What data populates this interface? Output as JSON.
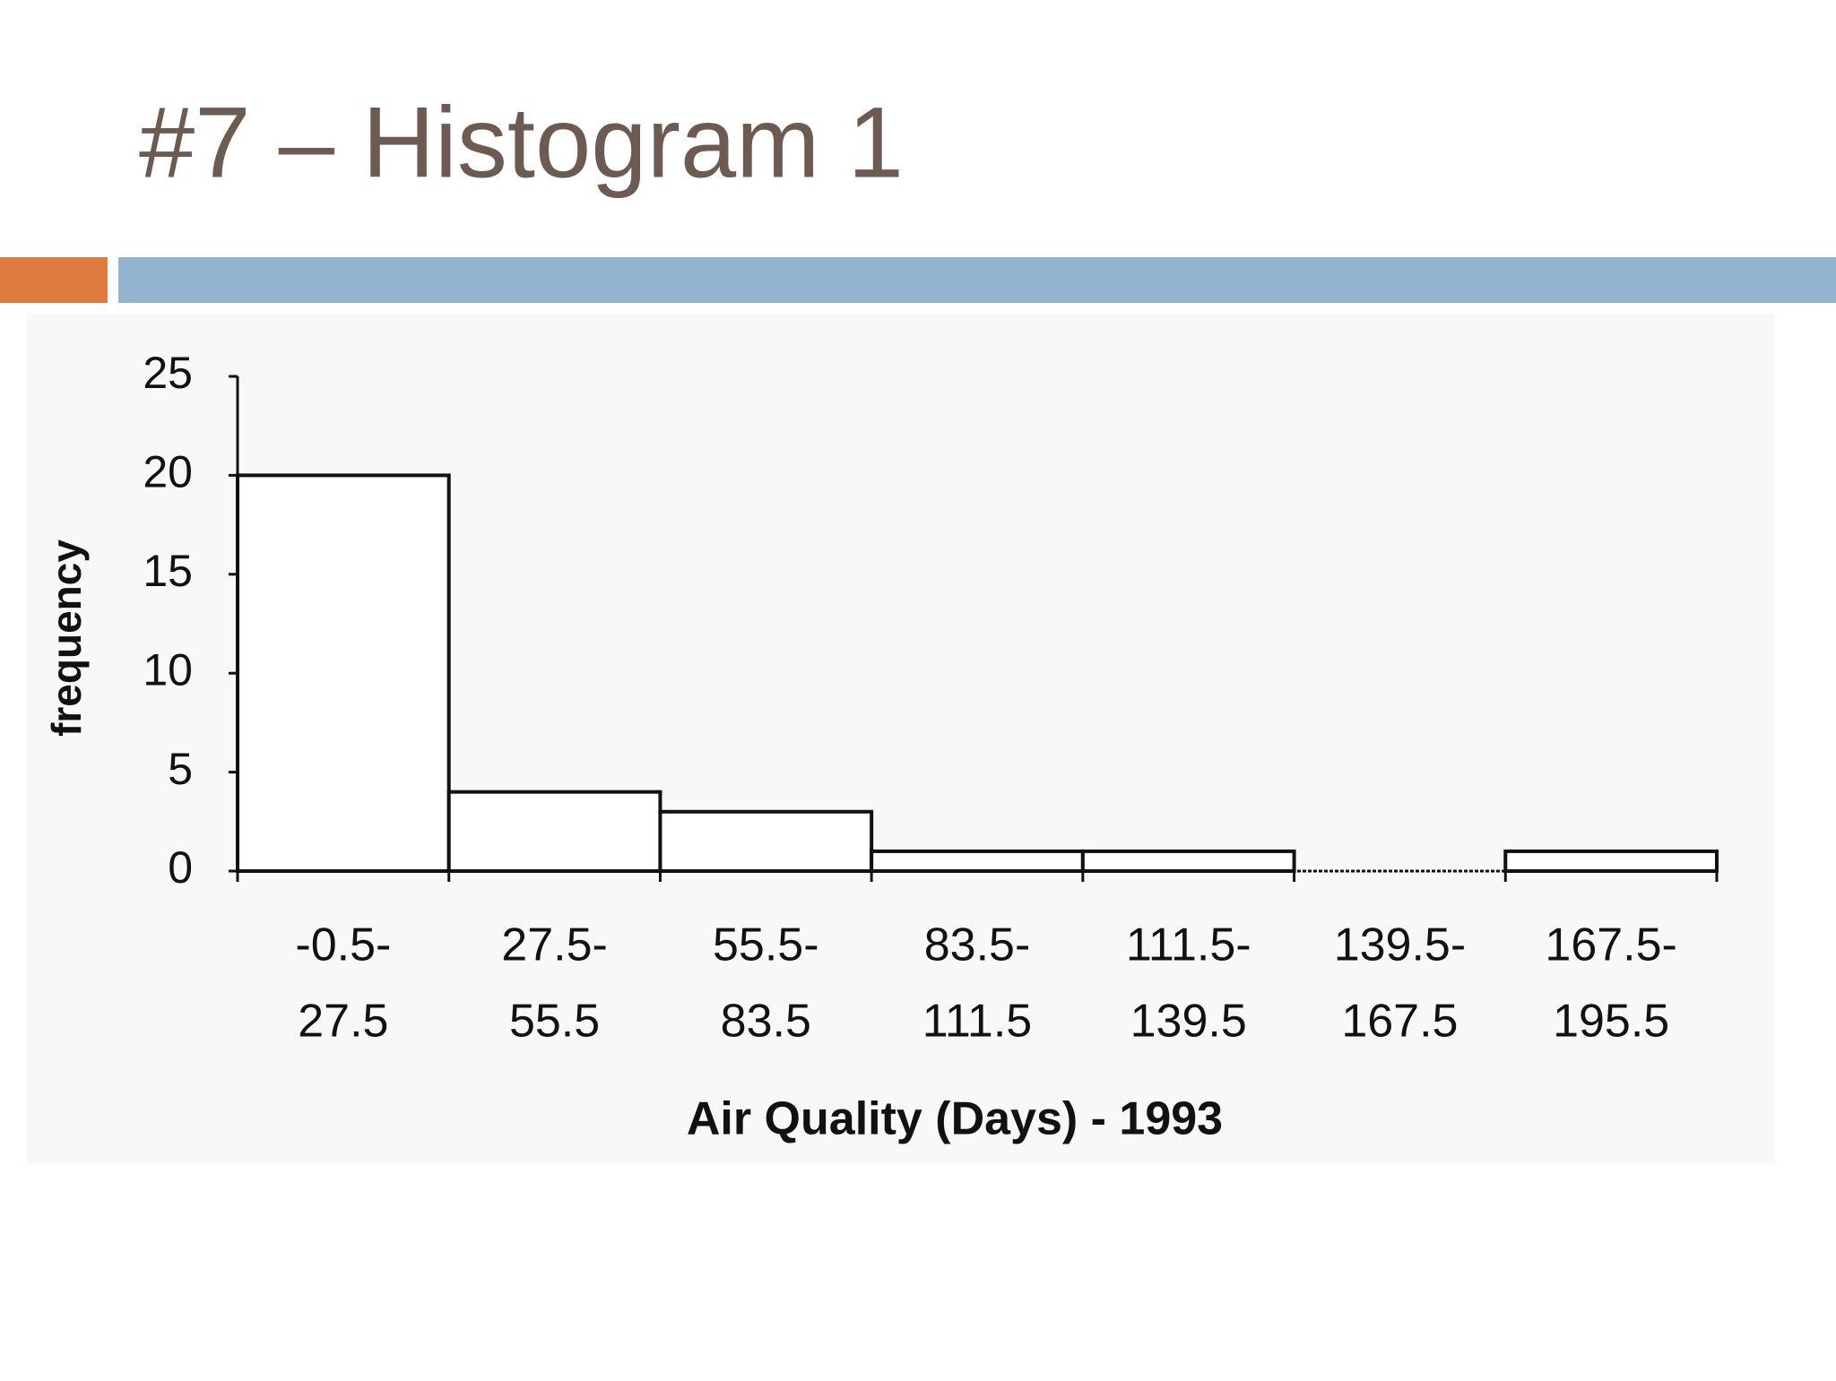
{
  "slide_title": "#7 – Histogram 1",
  "chart_data": {
    "type": "histogram",
    "bins": [
      -0.5,
      27.5,
      55.5,
      83.5,
      111.5,
      139.5,
      167.5,
      195.5
    ],
    "bin_labels": [
      [
        "-0.5-",
        "27.5"
      ],
      [
        "27.5-",
        "55.5"
      ],
      [
        "55.5-",
        "83.5"
      ],
      [
        "83.5-",
        "111.5"
      ],
      [
        "111.5-",
        "139.5"
      ],
      [
        "139.5-",
        "167.5"
      ],
      [
        "167.5-",
        "195.5"
      ]
    ],
    "values": [
      20,
      4,
      3,
      1,
      1,
      0,
      1
    ],
    "color": "#ffffff",
    "xlim": [
      -0.5,
      195.5
    ],
    "ylim": [
      0,
      25
    ],
    "yticks": [
      0,
      5,
      10,
      15,
      20,
      25
    ],
    "x_label": "Air Quality (Days) - 1993",
    "y_label": "frequency"
  }
}
